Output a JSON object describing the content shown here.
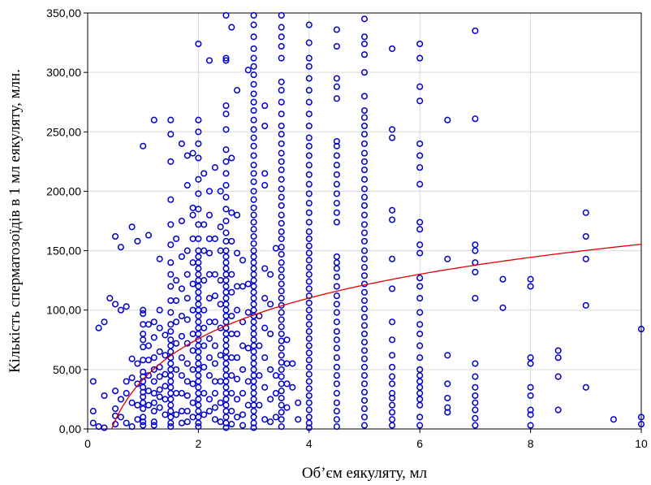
{
  "chart_data": {
    "type": "scatter",
    "title": "",
    "xlabel": "Об’єм еякуляту, мл",
    "ylabel": "Кількість сперматозоїдів в 1 мл еякуляту, млн.",
    "xlim": [
      0,
      10
    ],
    "ylim": [
      0,
      350
    ],
    "x_ticks": [
      0,
      2,
      4,
      6,
      8,
      10
    ],
    "x_tick_labels": [
      "0",
      "2",
      "4",
      "6",
      "8",
      "10"
    ],
    "y_ticks": [
      0,
      50,
      100,
      150,
      200,
      250,
      300,
      350
    ],
    "y_tick_labels": [
      "0,00",
      "50,00",
      "100,00",
      "150,00",
      "200,00",
      "250,00",
      "300,00",
      "350,00"
    ],
    "grid": true,
    "legend": "none",
    "colors": {
      "points": "#0000cc",
      "fit": "#e00000",
      "grid": "#d9d9d9",
      "axis": "#000000"
    },
    "fit_curve": {
      "type": "logarithmic",
      "equation": "y = 41.65 + 49.4*ln(x)",
      "a": 41.65,
      "b": 49.4
    },
    "columns": [
      {
        "x": 0.1,
        "y": [
          40,
          15,
          5
        ]
      },
      {
        "x": 0.2,
        "y": [
          85,
          2
        ]
      },
      {
        "x": 0.3,
        "y": [
          90,
          28,
          1
        ]
      },
      {
        "x": 0.4,
        "y": [
          110
        ]
      },
      {
        "x": 0.5,
        "y": [
          162,
          105,
          32,
          17,
          11,
          4
        ]
      },
      {
        "x": 0.6,
        "y": [
          153,
          100,
          25,
          10
        ]
      },
      {
        "x": 0.7,
        "y": [
          103,
          40,
          30,
          5
        ]
      },
      {
        "x": 0.8,
        "y": [
          170,
          59,
          43,
          22,
          2
        ]
      },
      {
        "x": 0.9,
        "y": [
          158,
          55,
          38,
          20,
          8
        ]
      },
      {
        "x": 1.0,
        "y": [
          238,
          100,
          97,
          88,
          80,
          75,
          69,
          58,
          48,
          44,
          40,
          35,
          31,
          27,
          22,
          17,
          10,
          6,
          3
        ]
      },
      {
        "x": 1.1,
        "y": [
          163,
          88,
          70,
          58,
          45,
          32,
          20
        ]
      },
      {
        "x": 1.2,
        "y": [
          260,
          90,
          77,
          60,
          50,
          40,
          30,
          22,
          15,
          6,
          3
        ]
      },
      {
        "x": 1.3,
        "y": [
          143,
          100,
          85,
          65,
          52,
          44,
          33,
          27,
          18
        ]
      },
      {
        "x": 1.4,
        "y": [
          79,
          62,
          46,
          36,
          25,
          12
        ]
      },
      {
        "x": 1.5,
        "y": [
          260,
          248,
          225,
          193,
          172,
          155,
          140,
          130,
          120,
          108,
          98,
          88,
          82,
          75,
          70,
          65,
          60,
          55,
          50,
          45,
          40,
          35,
          30,
          25,
          20,
          15,
          10,
          5,
          2
        ]
      },
      {
        "x": 1.6,
        "y": [
          160,
          125,
          108,
          90,
          72,
          50,
          30,
          12
        ]
      },
      {
        "x": 1.7,
        "y": [
          240,
          175,
          145,
          118,
          95,
          78,
          60,
          45,
          30,
          15,
          5
        ]
      },
      {
        "x": 1.8,
        "y": [
          230,
          205,
          150,
          130,
          110,
          92,
          72,
          55,
          40,
          28,
          15,
          6
        ]
      },
      {
        "x": 1.9,
        "y": [
          232,
          186,
          180,
          160,
          140,
          122,
          100,
          80,
          66,
          50,
          38,
          22,
          10
        ]
      },
      {
        "x": 2.0,
        "y": [
          324,
          260,
          250,
          240,
          228,
          210,
          198,
          185,
          172,
          160,
          150,
          145,
          140,
          135,
          130,
          125,
          120,
          115,
          110,
          105,
          100,
          95,
          90,
          85,
          80,
          75,
          70,
          65,
          60,
          55,
          50,
          45,
          40,
          35,
          30,
          25,
          20,
          15,
          10,
          5,
          2
        ]
      },
      {
        "x": 2.1,
        "y": [
          215,
          172,
          150,
          125,
          100,
          85,
          70,
          52,
          30,
          12
        ]
      },
      {
        "x": 2.2,
        "y": [
          310,
          200,
          180,
          160,
          148,
          130,
          110,
          90,
          76,
          60,
          45,
          25,
          15
        ]
      },
      {
        "x": 2.3,
        "y": [
          220,
          160,
          130,
          112,
          90,
          70,
          55,
          40,
          30,
          18,
          8
        ]
      },
      {
        "x": 2.4,
        "y": [
          200,
          170,
          150,
          125,
          105,
          85,
          62,
          40,
          22,
          6
        ]
      },
      {
        "x": 2.5,
        "y": [
          348,
          312,
          310,
          272,
          265,
          252,
          235,
          225,
          215,
          205,
          195,
          185,
          175,
          165,
          158,
          150,
          145,
          140,
          135,
          130,
          125,
          120,
          115,
          110,
          105,
          100,
          95,
          90,
          85,
          80,
          75,
          70,
          65,
          60,
          55,
          50,
          45,
          40,
          35,
          30,
          25,
          20,
          15,
          10,
          5,
          1
        ]
      },
      {
        "x": 2.6,
        "y": [
          338,
          228,
          182,
          158,
          130,
          115,
          95,
          80,
          60,
          45,
          30,
          15,
          4
        ]
      },
      {
        "x": 2.7,
        "y": [
          285,
          180,
          148,
          120,
          100,
          80,
          60,
          42,
          25,
          10
        ]
      },
      {
        "x": 2.8,
        "y": [
          142,
          120,
          90,
          70,
          50,
          30,
          12,
          3
        ]
      },
      {
        "x": 2.9,
        "y": [
          302,
          122,
          98,
          68,
          40,
          20
        ]
      },
      {
        "x": 3.0,
        "y": [
          348,
          340,
          330,
          320,
          312,
          305,
          298,
          290,
          282,
          275,
          268,
          260,
          252,
          245,
          238,
          230,
          222,
          215,
          208,
          200,
          193,
          186,
          180,
          174,
          168,
          162,
          156,
          150,
          145,
          140,
          135,
          130,
          125,
          120,
          115,
          110,
          105,
          100,
          95,
          90,
          85,
          80,
          75,
          70,
          65,
          60,
          55,
          50,
          45,
          40,
          35,
          30,
          25,
          20,
          15,
          10,
          5,
          1
        ]
      },
      {
        "x": 3.1,
        "y": [
          95,
          70,
          45,
          20
        ]
      },
      {
        "x": 3.2,
        "y": [
          272,
          255,
          215,
          205,
          135,
          110,
          85,
          60,
          35,
          8
        ]
      },
      {
        "x": 3.3,
        "y": [
          130,
          105,
          80,
          50,
          25,
          6
        ]
      },
      {
        "x": 3.4,
        "y": [
          152,
          45,
          30,
          10
        ]
      },
      {
        "x": 3.5,
        "y": [
          348,
          338,
          330,
          322,
          312,
          292,
          285,
          275,
          265,
          255,
          248,
          240,
          232,
          225,
          218,
          210,
          202,
          195,
          188,
          180,
          173,
          166,
          160,
          153,
          147,
          140,
          134,
          128,
          122,
          116,
          110,
          104,
          98,
          92,
          86,
          80,
          74,
          68,
          62,
          56,
          50,
          44,
          38,
          32,
          26,
          20,
          14,
          8,
          2
        ]
      },
      {
        "x": 3.6,
        "y": [
          75,
          55,
          38,
          18
        ]
      },
      {
        "x": 3.7,
        "y": [
          55,
          35
        ]
      },
      {
        "x": 3.8,
        "y": [
          22,
          8
        ]
      },
      {
        "x": 4.0,
        "y": [
          340,
          325,
          312,
          305,
          295,
          285,
          275,
          265,
          255,
          245,
          238,
          230,
          222,
          214,
          206,
          198,
          190,
          182,
          174,
          166,
          160,
          154,
          148,
          142,
          136,
          130,
          124,
          118,
          112,
          106,
          100,
          94,
          88,
          82,
          76,
          70,
          64,
          58,
          52,
          46,
          40,
          34,
          28,
          22,
          16,
          10,
          5,
          1
        ]
      },
      {
        "x": 4.5,
        "y": [
          336,
          322,
          295,
          288,
          278,
          242,
          238,
          230,
          222,
          214,
          206,
          198,
          190,
          182,
          174,
          145,
          140,
          135,
          128,
          120,
          112,
          105,
          98,
          90,
          82,
          75,
          68,
          60,
          52,
          45,
          38,
          30,
          22,
          15,
          8,
          2
        ]
      },
      {
        "x": 5.0,
        "y": [
          345,
          330,
          324,
          315,
          300,
          280,
          268,
          262,
          255,
          248,
          240,
          232,
          225,
          218,
          210,
          202,
          195,
          188,
          180,
          172,
          165,
          158,
          150,
          143,
          136,
          129,
          122,
          115,
          108,
          101,
          94,
          87,
          80,
          73,
          66,
          59,
          52,
          45,
          38,
          31,
          24,
          17,
          10,
          3
        ]
      },
      {
        "x": 5.5,
        "y": [
          320,
          252,
          245,
          184,
          176,
          143,
          118,
          90,
          75,
          62,
          52,
          44,
          38,
          30,
          26,
          20,
          14,
          8,
          3
        ]
      },
      {
        "x": 6.0,
        "y": [
          324,
          312,
          288,
          276,
          240,
          230,
          220,
          206,
          174,
          168,
          155,
          148,
          127,
          120,
          110,
          98,
          88,
          80,
          70,
          60,
          50,
          45,
          40,
          35,
          30,
          25,
          20,
          10,
          3
        ]
      },
      {
        "x": 6.5,
        "y": [
          260,
          143,
          62,
          38,
          26,
          18,
          14
        ]
      },
      {
        "x": 7.0,
        "y": [
          335,
          261,
          155,
          150,
          140,
          132,
          110,
          55,
          44,
          35,
          28,
          22,
          16,
          9,
          3
        ]
      },
      {
        "x": 7.5,
        "y": [
          126,
          102
        ]
      },
      {
        "x": 8.0,
        "y": [
          126,
          120,
          60,
          55,
          35,
          28,
          16,
          12,
          3
        ]
      },
      {
        "x": 8.5,
        "y": [
          66,
          60,
          44,
          16
        ]
      },
      {
        "x": 9.0,
        "y": [
          182,
          162,
          143,
          104,
          35
        ]
      },
      {
        "x": 9.5,
        "y": [
          8
        ]
      },
      {
        "x": 10.0,
        "y": [
          84,
          10,
          4
        ]
      }
    ]
  }
}
